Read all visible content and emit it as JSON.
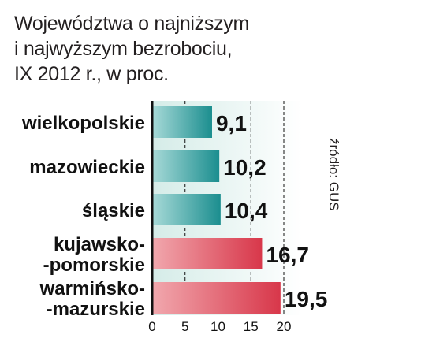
{
  "chart_data": {
    "type": "bar",
    "orientation": "horizontal",
    "title_lines": [
      "Województwa o najniższym",
      "i najwyższym bezrobociu,",
      "IX 2012 r., w proc."
    ],
    "categories": [
      [
        "wielkopolskie"
      ],
      [
        "mazowieckie"
      ],
      [
        "śląskie"
      ],
      [
        "kujawsko-",
        "-pomorskie"
      ],
      [
        "warmińsko-",
        "-mazurskie"
      ]
    ],
    "values": [
      9.1,
      10.2,
      10.4,
      16.7,
      19.5
    ],
    "value_labels": [
      "9,1",
      "10,2",
      "10,4",
      "16,7",
      "19,5"
    ],
    "xlim": [
      0,
      20
    ],
    "xticks": [
      0,
      5,
      10,
      15,
      20
    ],
    "grid": "vertical dashed",
    "source": "źródło: GUS",
    "colors": {
      "low": "#1b8e8f",
      "high": "#d8374a",
      "plot_bg": "#e3f2ef",
      "axis": "#111111"
    },
    "bar_group": [
      "low",
      "low",
      "low",
      "high",
      "high"
    ]
  }
}
